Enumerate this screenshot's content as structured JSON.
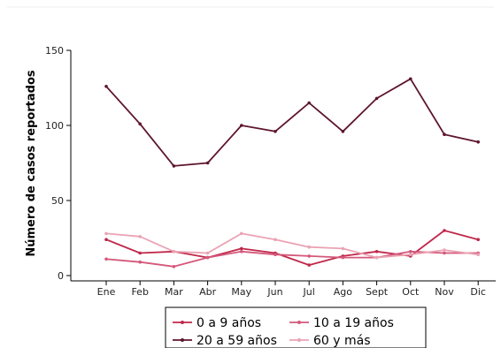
{
  "chart_data": {
    "type": "line",
    "title": "",
    "xlabel": "",
    "ylabel": "Número de casos reportados",
    "categories": [
      "Ene",
      "Feb",
      "Mar",
      "Abr",
      "May",
      "Jun",
      "Jul",
      "Ago",
      "Sept",
      "Oct",
      "Nov",
      "Dic"
    ],
    "ylim": [
      0,
      150
    ],
    "yticks": [
      0,
      50,
      100,
      150
    ],
    "grid": false,
    "legend_position": "bottom",
    "series": [
      {
        "name": "0 a 9 años",
        "color": "#C0284A",
        "values": [
          24,
          15,
          16,
          12,
          18,
          15,
          7,
          13,
          16,
          13,
          30,
          24
        ]
      },
      {
        "name": "10 a 19 años",
        "color": "#D4587A",
        "values": [
          11,
          9,
          6,
          12,
          16,
          14,
          13,
          12,
          12,
          16,
          15,
          15
        ]
      },
      {
        "name": "20 a 59 años",
        "color": "#5E1530",
        "values": [
          126,
          101,
          73,
          75,
          100,
          96,
          115,
          96,
          118,
          131,
          94,
          89
        ]
      },
      {
        "name": "60 y más",
        "color": "#EBA3B4",
        "values": [
          28,
          26,
          16,
          15,
          28,
          24,
          19,
          18,
          12,
          14,
          17,
          14
        ]
      }
    ]
  }
}
